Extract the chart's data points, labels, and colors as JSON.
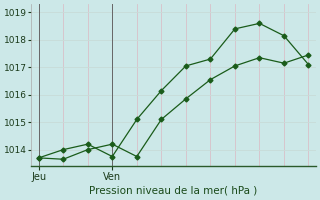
{
  "title": "Pression niveau de la mer( hPa )",
  "bg_color": "#cce8e8",
  "grid_color_v": "#d8c0c8",
  "grid_color_h": "#c8dcd8",
  "line_color": "#1a5c1a",
  "ylim": [
    1013.4,
    1019.3
  ],
  "yticks": [
    1014,
    1015,
    1016,
    1017,
    1018,
    1019
  ],
  "jeu_x": 0,
  "ven_x": 3,
  "xlim": [
    -0.3,
    11.3
  ],
  "line1_x": [
    0,
    1,
    2,
    3,
    4,
    5,
    6,
    7,
    8,
    9,
    10,
    11
  ],
  "line1_y": [
    1013.7,
    1013.65,
    1014.0,
    1014.2,
    1013.75,
    1015.1,
    1015.85,
    1016.55,
    1017.05,
    1017.35,
    1017.15,
    1017.45
  ],
  "line2_x": [
    0,
    1,
    2,
    3,
    4,
    5,
    6,
    7,
    8,
    9,
    10,
    11
  ],
  "line2_y": [
    1013.7,
    1014.0,
    1014.2,
    1013.75,
    1015.1,
    1016.15,
    1017.05,
    1017.3,
    1018.4,
    1018.6,
    1018.15,
    1017.1
  ]
}
